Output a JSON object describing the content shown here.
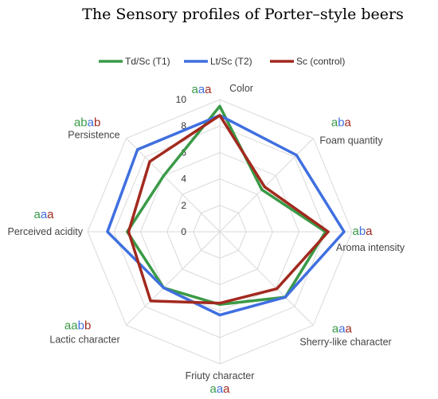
{
  "chart_data": {
    "type": "radar",
    "title": "The Sensory profiles of Porter–style beers",
    "axes": [
      "Color",
      "Foam quantity",
      "Aroma intensity",
      "Sherry-like character",
      "Friuty character",
      "Lactic character",
      "Perceived acidity",
      "Persistence"
    ],
    "rlim": [
      0,
      10
    ],
    "ticks": [
      "0",
      "2",
      "4",
      "6",
      "8",
      "10"
    ],
    "tick_values": [
      0,
      2,
      4,
      6,
      8,
      10
    ],
    "grid": true,
    "legend_position": "top",
    "series": [
      {
        "name": "Td/Sc (T1)",
        "color": "#3a9a47",
        "values": [
          9.5,
          4.5,
          8.0,
          7.0,
          5.5,
          6.0,
          7.0,
          6.0
        ]
      },
      {
        "name": "Lt/Sc (T2)",
        "color": "#3f6fe0",
        "values": [
          8.8,
          8.2,
          9.4,
          7.0,
          6.3,
          6.0,
          8.5,
          8.8
        ]
      },
      {
        "name": "Sc (control)",
        "color": "#a2291e",
        "values": [
          8.8,
          4.8,
          8.2,
          6.1,
          5.4,
          7.4,
          6.9,
          7.5
        ]
      }
    ],
    "significance": [
      [
        "a",
        "a",
        "a"
      ],
      [
        "a",
        "b",
        "a"
      ],
      [
        "a",
        "b",
        "a"
      ],
      [
        "a",
        "a",
        "a"
      ],
      [
        "a",
        "a",
        "a"
      ],
      [
        "a",
        "a",
        "b",
        "b"
      ],
      [
        "a",
        "a",
        "a"
      ],
      [
        "a",
        "b",
        "a",
        "b"
      ]
    ],
    "significance_colors": [
      [
        "#3a9a47",
        "#3f6fe0",
        "#a2291e"
      ],
      [
        "#3a9a47",
        "#3f6fe0",
        "#a2291e"
      ],
      [
        "#3a9a47",
        "#3f6fe0",
        "#a2291e"
      ],
      [
        "#3a9a47",
        "#3f6fe0",
        "#a2291e"
      ],
      [
        "#3a9a47",
        "#3f6fe0",
        "#a2291e"
      ],
      [
        "#3a9a47",
        "#3a9a47",
        "#3f6fe0",
        "#a2291e"
      ],
      [
        "#3a9a47",
        "#3f6fe0",
        "#a2291e"
      ],
      [
        "#3a9a47",
        "#3a9a47",
        "#3f6fe0",
        "#a2291e"
      ]
    ]
  }
}
